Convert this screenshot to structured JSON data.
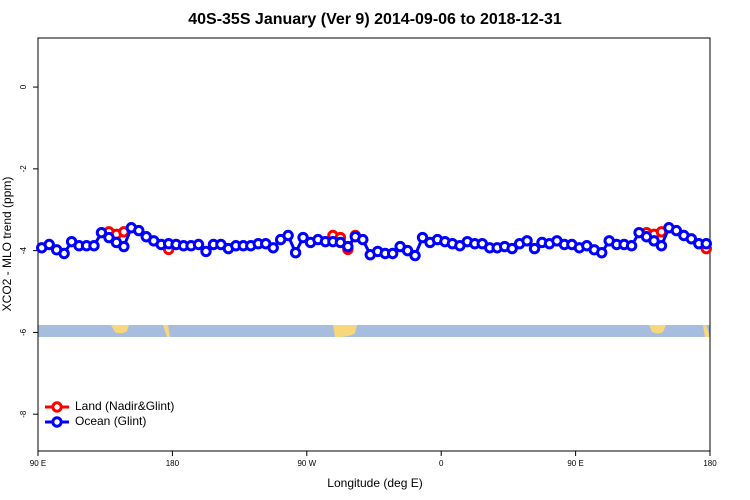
{
  "chart_data": {
    "type": "line",
    "title": "40S-35S January (Ver 9)   2014-09-06 to 2018-12-31",
    "xlabel": "Longitude (deg E)",
    "ylabel": "XCO2 - MLO trend (ppm)",
    "x": [
      92.5,
      97.5,
      102.5,
      107.5,
      112.5,
      117.5,
      122.5,
      127.5,
      132.5,
      137.5,
      142.5,
      147.5,
      152.5,
      157.5,
      162.5,
      167.5,
      172.5,
      177.5,
      182.5,
      187.5,
      192.5,
      197.5,
      202.5,
      207.5,
      212.5,
      217.5,
      222.5,
      227.5,
      232.5,
      237.5,
      242.5,
      247.5,
      252.5,
      257.5,
      262.5,
      267.5,
      272.5,
      277.5,
      282.5,
      287.5,
      292.5,
      297.5,
      302.5,
      307.5,
      312.5,
      317.5,
      322.5,
      327.5,
      332.5,
      337.5,
      342.5,
      347.5,
      352.5,
      357.5,
      362.5,
      367.5,
      372.5,
      377.5,
      382.5,
      387.5,
      392.5,
      397.5,
      402.5,
      407.5,
      412.5,
      417.5,
      422.5,
      427.5,
      432.5,
      437.5,
      442.5,
      447.5,
      452.5,
      457.5,
      462.5,
      467.5,
      472.5,
      477.5,
      482.5,
      487.5,
      492.5,
      497.5,
      502.5,
      507.5,
      512.5,
      517.5,
      522.5,
      527.5,
      532.5,
      537.5
    ],
    "series": [
      {
        "name": "Land (Nadir&Glint)",
        "color": "#ff0000",
        "values": [
          null,
          null,
          null,
          null,
          null,
          null,
          null,
          null,
          null,
          -3.54,
          -3.6,
          -3.54,
          null,
          null,
          null,
          null,
          null,
          -3.97,
          null,
          null,
          null,
          null,
          null,
          null,
          null,
          null,
          null,
          null,
          null,
          null,
          null,
          null,
          null,
          null,
          null,
          null,
          null,
          null,
          null,
          -3.63,
          -3.68,
          -3.97,
          -3.63,
          null,
          null,
          null,
          null,
          null,
          null,
          null,
          null,
          null,
          null,
          null,
          null,
          null,
          null,
          null,
          null,
          null,
          null,
          null,
          null,
          null,
          null,
          null,
          null,
          null,
          null,
          null,
          null,
          null,
          null,
          null,
          null,
          null,
          null,
          null,
          null,
          null,
          null,
          -3.56,
          -3.6,
          -3.54,
          null,
          null,
          null,
          null,
          null,
          -3.95
        ]
      },
      {
        "name": "Ocean (Glint)",
        "color": "#0000ff",
        "values": [
          -3.93,
          -3.85,
          -3.98,
          -4.07,
          -3.78,
          -3.88,
          -3.88,
          -3.88,
          -3.56,
          -3.68,
          -3.8,
          -3.9,
          -3.44,
          -3.51,
          -3.66,
          -3.76,
          -3.85,
          -3.83,
          -3.85,
          -3.88,
          -3.88,
          -3.85,
          -4.02,
          -3.85,
          -3.85,
          -3.95,
          -3.88,
          -3.88,
          -3.88,
          -3.83,
          -3.83,
          -3.93,
          -3.73,
          -3.63,
          -4.05,
          -3.68,
          -3.8,
          -3.73,
          -3.78,
          -3.78,
          -3.8,
          -3.9,
          -3.66,
          -3.73,
          -4.1,
          -4.02,
          -4.07,
          -4.07,
          -3.9,
          -4.0,
          -4.12,
          -3.68,
          -3.8,
          -3.73,
          -3.78,
          -3.83,
          -3.88,
          -3.78,
          -3.83,
          -3.83,
          -3.93,
          -3.93,
          -3.9,
          -3.95,
          -3.83,
          -3.76,
          -3.95,
          -3.8,
          -3.83,
          -3.76,
          -3.85,
          -3.85,
          -3.93,
          -3.88,
          -3.98,
          -4.05,
          -3.76,
          -3.85,
          -3.85,
          -3.88,
          -3.56,
          -3.66,
          -3.76,
          -3.88,
          -3.44,
          -3.51,
          -3.63,
          -3.71,
          -3.83,
          -3.83
        ]
      }
    ],
    "xlim": [
      90,
      540
    ],
    "xticks": [
      {
        "value": 90,
        "label": "90 E"
      },
      180,
      {
        "value": 270,
        "label": "90 W"
      },
      {
        "value": 360,
        "label": "0"
      },
      {
        "value": 450,
        "label": "90 E"
      },
      {
        "value": 540,
        "label": "180"
      }
    ],
    "ylim": [
      -8.9,
      1.2
    ],
    "yticks": [
      0,
      -2,
      -4,
      -6,
      -8
    ],
    "legend": "bottomleft"
  }
}
